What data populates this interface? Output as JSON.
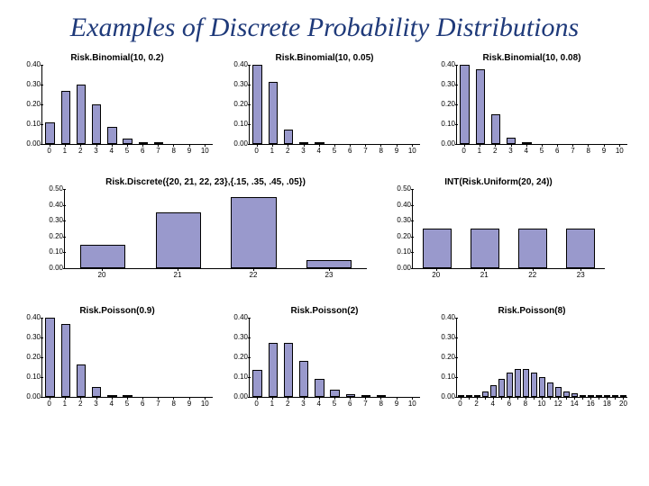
{
  "slide": {
    "title": "Examples of Discrete Probability Distributions",
    "title_color": "#1f3a7a",
    "background_color": "#ffffff",
    "bar_fill_color": "#9999cc",
    "bar_border_color": "#000000",
    "axis_color": "#000000",
    "title_fontsize": 30,
    "chart_title_fontsize": 10,
    "tick_fontsize": 8
  },
  "charts": {
    "binom_02": {
      "title": "Risk.Binomial(10, 0.2)",
      "type": "bar",
      "x": [
        "0",
        "1",
        "2",
        "3",
        "4",
        "5",
        "6",
        "7",
        "8",
        "9",
        "10"
      ],
      "y": [
        0.107,
        0.268,
        0.302,
        0.201,
        0.088,
        0.026,
        0.006,
        0.001,
        0.0,
        0.0,
        0.0
      ],
      "ymax": 0.4,
      "yticks": [
        0.0,
        0.1,
        0.2,
        0.3,
        0.4
      ],
      "ytick_labels": [
        "0.00",
        "0.10",
        "0.20",
        "0.30",
        "0.40"
      ]
    },
    "binom_005": {
      "title": "Risk.Binomial(10, 0.05)",
      "type": "bar",
      "x": [
        "0",
        "1",
        "2",
        "3",
        "4",
        "5",
        "6",
        "7",
        "8",
        "9",
        "10"
      ],
      "y": [
        0.4,
        0.315,
        0.075,
        0.01,
        0.001,
        0.0,
        0.0,
        0.0,
        0.0,
        0.0,
        0.0
      ],
      "ymax": 0.4,
      "yticks": [
        0.0,
        0.1,
        0.2,
        0.3,
        0.4
      ],
      "ytick_labels": [
        "0.00",
        "0.10",
        "0.20",
        "0.30",
        "0.40"
      ]
    },
    "binom_008": {
      "title": "Risk.Binomial(10, 0.08)",
      "type": "bar",
      "x": [
        "0",
        "1",
        "2",
        "3",
        "4",
        "5",
        "6",
        "7",
        "8",
        "9",
        "10"
      ],
      "y": [
        0.4,
        0.378,
        0.148,
        0.034,
        0.005,
        0.0,
        0.0,
        0.0,
        0.0,
        0.0,
        0.0
      ],
      "ymax": 0.4,
      "yticks": [
        0.0,
        0.1,
        0.2,
        0.3,
        0.4
      ],
      "ytick_labels": [
        "0.00",
        "0.10",
        "0.20",
        "0.30",
        "0.40"
      ]
    },
    "discrete": {
      "title": "Risk.Discrete({20, 21, 22, 23},{.15, .35, .45, .05})",
      "type": "bar",
      "x": [
        "20",
        "21",
        "22",
        "23"
      ],
      "y": [
        0.15,
        0.35,
        0.45,
        0.05
      ],
      "ymax": 0.5,
      "yticks": [
        0.0,
        0.1,
        0.2,
        0.3,
        0.4,
        0.5
      ],
      "ytick_labels": [
        "0.00",
        "0.10",
        "0.20",
        "0.30",
        "0.40",
        "0.50"
      ]
    },
    "uniform": {
      "title": "INT(Risk.Uniform(20, 24))",
      "type": "bar",
      "x": [
        "20",
        "21",
        "22",
        "23"
      ],
      "y": [
        0.25,
        0.25,
        0.25,
        0.25
      ],
      "ymax": 0.5,
      "yticks": [
        0.0,
        0.1,
        0.2,
        0.3,
        0.4,
        0.5
      ],
      "ytick_labels": [
        "0.00",
        "0.10",
        "0.20",
        "0.30",
        "0.40",
        "0.50"
      ]
    },
    "poisson_09": {
      "title": "Risk.Poisson(0.9)",
      "type": "bar",
      "x": [
        "0",
        "1",
        "2",
        "3",
        "4",
        "5",
        "6",
        "7",
        "8",
        "9",
        "10"
      ],
      "y": [
        0.4,
        0.366,
        0.165,
        0.049,
        0.011,
        0.002,
        0.0,
        0.0,
        0.0,
        0.0,
        0.0
      ],
      "ymax": 0.4,
      "yticks": [
        0.0,
        0.1,
        0.2,
        0.3,
        0.4
      ],
      "ytick_labels": [
        "0.00",
        "0.10",
        "0.20",
        "0.30",
        "0.40"
      ]
    },
    "poisson_2": {
      "title": "Risk.Poisson(2)",
      "type": "bar",
      "x": [
        "0",
        "1",
        "2",
        "3",
        "4",
        "5",
        "6",
        "7",
        "8",
        "9",
        "10"
      ],
      "y": [
        0.135,
        0.271,
        0.271,
        0.18,
        0.09,
        0.036,
        0.012,
        0.003,
        0.001,
        0.0,
        0.0
      ],
      "ymax": 0.4,
      "yticks": [
        0.0,
        0.1,
        0.2,
        0.3,
        0.4
      ],
      "ytick_labels": [
        "0.00",
        "0.10",
        "0.20",
        "0.30",
        "0.40"
      ]
    },
    "poisson_8": {
      "title": "Risk.Poisson(8)",
      "type": "bar",
      "x": [
        "0",
        "2",
        "4",
        "6",
        "8",
        "10",
        "12",
        "14",
        "16",
        "18",
        "20"
      ],
      "x_values": [
        0,
        1,
        2,
        3,
        4,
        5,
        6,
        7,
        8,
        9,
        10,
        11,
        12,
        13,
        14,
        15,
        16,
        17,
        18,
        19,
        20
      ],
      "y": [
        0.0003,
        0.0027,
        0.0107,
        0.0286,
        0.0573,
        0.0916,
        0.1221,
        0.1396,
        0.1396,
        0.1241,
        0.0993,
        0.0722,
        0.0481,
        0.0296,
        0.0169,
        0.009,
        0.0045,
        0.0021,
        0.0009,
        0.0004,
        0.0002
      ],
      "ymax": 0.4,
      "yticks": [
        0.0,
        0.1,
        0.2,
        0.3,
        0.4
      ],
      "ytick_labels": [
        "0.00",
        "0.10",
        "0.20",
        "0.30",
        "0.40"
      ]
    }
  }
}
